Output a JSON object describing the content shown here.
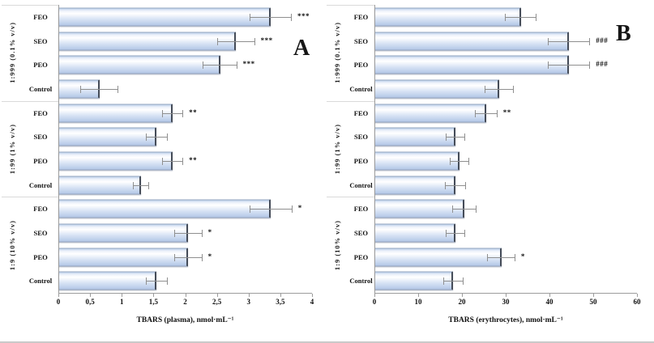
{
  "colors": {
    "bar_top": "#bfd2ec",
    "bar_highlight": "#eef3fb",
    "bar_mid": "#d9e4f5",
    "bar_bottom": "#b3c7e6",
    "bar_border": "#93a5bf",
    "bar_end_cap": "#454c58",
    "error_bar": "#8f8f8f",
    "axis_line": "#9c9c9c"
  },
  "chart_data": [
    {
      "type": "bar",
      "orientation": "horizontal",
      "panel_label": "A",
      "xlabel": "TBARS (plasma), nmol·mL⁻¹",
      "xlim": [
        0,
        4
      ],
      "xticks": [
        "0",
        "0,5",
        "1",
        "1,5",
        "2",
        "2,5",
        "3",
        "3,5",
        "4"
      ],
      "xtick_values": [
        0,
        0.5,
        1,
        1.5,
        2,
        2.5,
        3,
        3.5,
        4
      ],
      "grid": false,
      "legend": "none",
      "categories": [
        "FEO",
        "SEO",
        "PEO",
        "Control"
      ],
      "groups": [
        {
          "label": "1:999 (0.1% v/v)",
          "bars": [
            {
              "category": "FEO",
              "value": 3.35,
              "error": 0.33,
              "sig": "***"
            },
            {
              "category": "SEO",
              "value": 2.8,
              "error": 0.3,
              "sig": "***"
            },
            {
              "category": "PEO",
              "value": 2.55,
              "error": 0.27,
              "sig": "***"
            },
            {
              "category": "Control",
              "value": 0.65,
              "error": 0.3,
              "sig": ""
            }
          ]
        },
        {
          "label": "1:99 (1% v/v)",
          "bars": [
            {
              "category": "FEO",
              "value": 1.8,
              "error": 0.17,
              "sig": "**"
            },
            {
              "category": "SEO",
              "value": 1.55,
              "error": 0.17,
              "sig": ""
            },
            {
              "category": "PEO",
              "value": 1.8,
              "error": 0.17,
              "sig": "**"
            },
            {
              "category": "Control",
              "value": 1.3,
              "error": 0.13,
              "sig": ""
            }
          ]
        },
        {
          "label": "1:9 (10% v/v)",
          "bars": [
            {
              "category": "FEO",
              "value": 3.35,
              "error": 0.34,
              "sig": "*"
            },
            {
              "category": "SEO",
              "value": 2.05,
              "error": 0.22,
              "sig": "*"
            },
            {
              "category": "PEO",
              "value": 2.05,
              "error": 0.22,
              "sig": "*"
            },
            {
              "category": "Control",
              "value": 1.55,
              "error": 0.17,
              "sig": ""
            }
          ]
        }
      ]
    },
    {
      "type": "bar",
      "orientation": "horizontal",
      "panel_label": "B",
      "xlabel": "TBARS (erythrocytes), nmol·mL⁻¹",
      "xlim": [
        0,
        60
      ],
      "xticks": [
        "0",
        "10",
        "20",
        "30",
        "40",
        "50",
        "60"
      ],
      "xtick_values": [
        0,
        10,
        20,
        30,
        40,
        50,
        60
      ],
      "grid": false,
      "legend": "none",
      "categories": [
        "FEO",
        "SEO",
        "PEO",
        "Control"
      ],
      "groups": [
        {
          "label": "1:999 (0.1% v/v)",
          "bars": [
            {
              "category": "FEO",
              "value": 33.5,
              "error": 3.6,
              "sig": ""
            },
            {
              "category": "SEO",
              "value": 44.5,
              "error": 4.8,
              "sig": "###"
            },
            {
              "category": "PEO",
              "value": 44.5,
              "error": 4.8,
              "sig": "###"
            },
            {
              "category": "Control",
              "value": 28.5,
              "error": 3.4,
              "sig": ""
            }
          ]
        },
        {
          "label": "1:99 (1% v/v)",
          "bars": [
            {
              "category": "FEO",
              "value": 25.5,
              "error": 2.6,
              "sig": "**"
            },
            {
              "category": "SEO",
              "value": 18.5,
              "error": 2.2,
              "sig": ""
            },
            {
              "category": "PEO",
              "value": 19.5,
              "error": 2.2,
              "sig": ""
            },
            {
              "category": "Control",
              "value": 18.5,
              "error": 2.4,
              "sig": ""
            }
          ]
        },
        {
          "label": "1:9 (10% v/v)",
          "bars": [
            {
              "category": "FEO",
              "value": 20.5,
              "error": 2.8,
              "sig": ""
            },
            {
              "category": "SEO",
              "value": 18.5,
              "error": 2.2,
              "sig": ""
            },
            {
              "category": "PEO",
              "value": 29.0,
              "error": 3.2,
              "sig": "*"
            },
            {
              "category": "Control",
              "value": 18.0,
              "error": 2.3,
              "sig": ""
            }
          ]
        }
      ]
    }
  ]
}
